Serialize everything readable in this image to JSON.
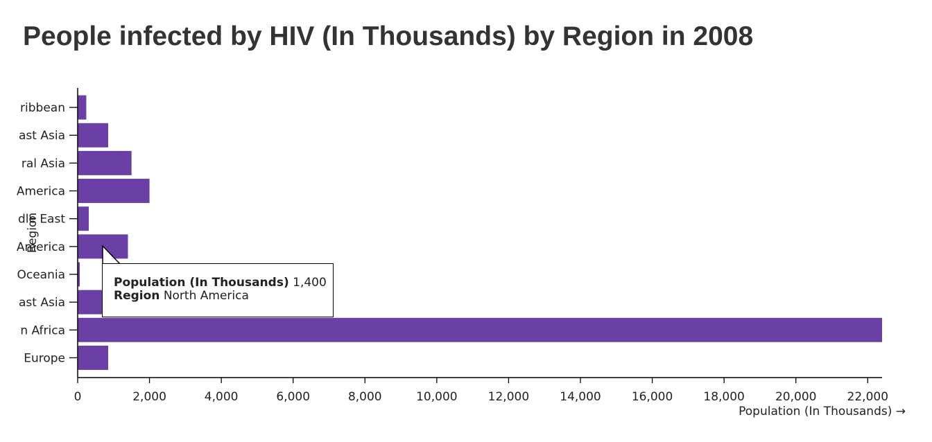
{
  "title": "People infected by HIV (In Thousands) by Region in 2008",
  "chart_data": {
    "type": "bar",
    "orientation": "horizontal",
    "categories": [
      "Caribbean",
      "East Asia",
      "Central Asia",
      "Latin America",
      "Middle East",
      "North America",
      "Oceania",
      "South East Asia",
      "Sub-Saharan Africa",
      "Western Europe"
    ],
    "category_display": [
      "ribbean",
      "ast Asia",
      "ral Asia",
      "America",
      "dle East",
      "America",
      "Oceania",
      "ast Asia",
      "n Africa",
      "Europe"
    ],
    "values": [
      240,
      850,
      1500,
      2000,
      310,
      1400,
      59,
      800,
      22400,
      850
    ],
    "xlim": [
      0,
      22400
    ],
    "xticks": [
      0,
      2000,
      4000,
      6000,
      8000,
      10000,
      12000,
      14000,
      16000,
      18000,
      20000,
      22000
    ],
    "xtick_labels": [
      "0",
      "2,000",
      "4,000",
      "6,000",
      "8,000",
      "10,000",
      "12,000",
      "14,000",
      "16,000",
      "18,000",
      "20,000",
      "22,000"
    ],
    "xlabel": "Population (In Thousands) →",
    "ylabel": "Region",
    "bar_color": "#6b3fa6",
    "grid": false
  },
  "tooltip": {
    "value_key": "Population (In Thousands)",
    "value": "1,400",
    "region_key": "Region",
    "region": "North America"
  }
}
